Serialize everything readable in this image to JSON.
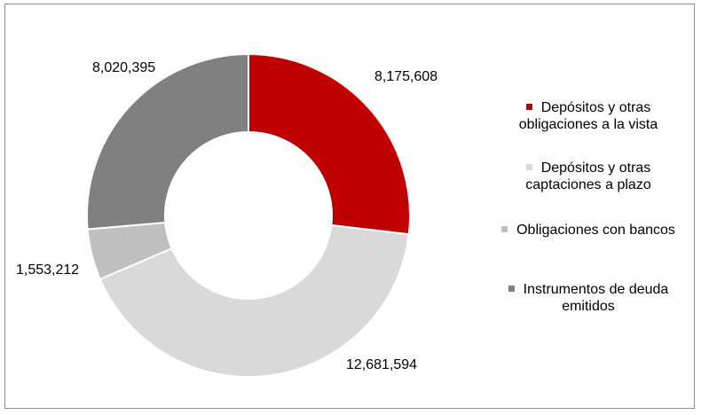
{
  "chart_data": {
    "type": "pie",
    "variant": "donut",
    "title": "",
    "slices": [
      {
        "label": "Depósitos y otras obligaciones a la vista",
        "value": 8175608,
        "value_text": "8,175,608",
        "color": "#c00000"
      },
      {
        "label": "Depósitos y otras captaciones a plazo",
        "value": 12681594,
        "value_text": "12,681,594",
        "color": "#d9d9d9"
      },
      {
        "label": "Obligaciones con bancos",
        "value": 1553212,
        "value_text": "1,553,212",
        "color": "#bfbfbf"
      },
      {
        "label": "Instrumentos de deuda emitidos",
        "value": 8020395,
        "value_text": "8,020,395",
        "color": "#808080"
      }
    ],
    "legend_position": "right",
    "start_angle": "12 o'clock",
    "direction": "clockwise"
  }
}
